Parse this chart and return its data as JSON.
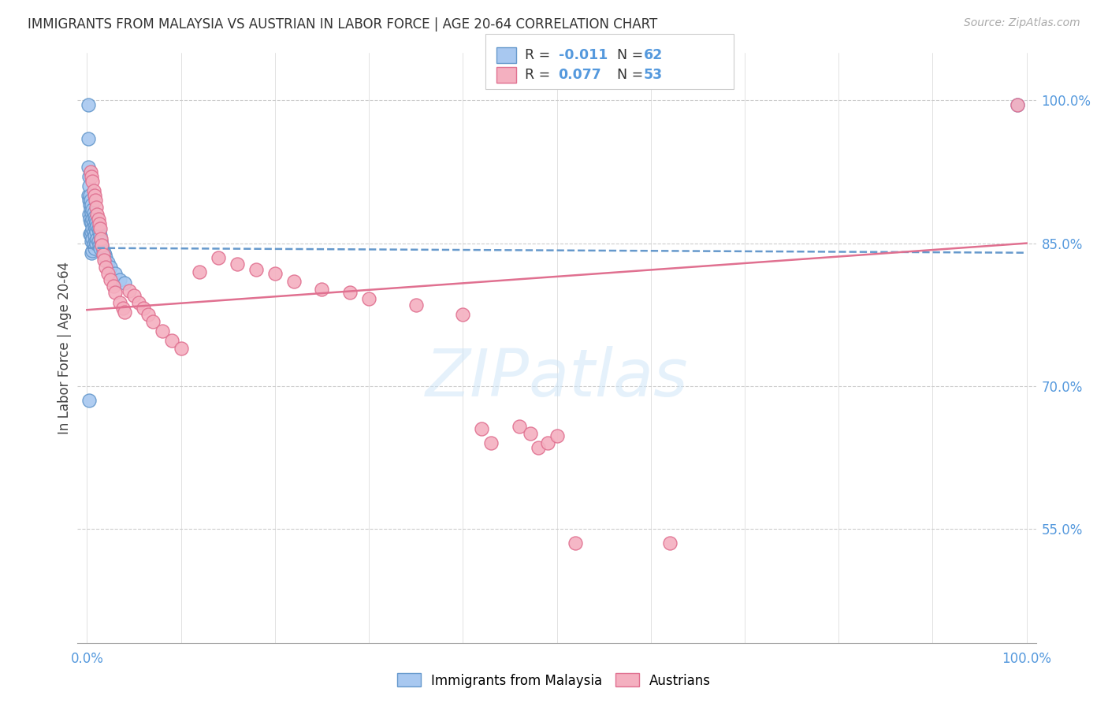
{
  "title": "IMMIGRANTS FROM MALAYSIA VS AUSTRIAN IN LABOR FORCE | AGE 20-64 CORRELATION CHART",
  "source": "Source: ZipAtlas.com",
  "ylabel": "In Labor Force | Age 20-64",
  "r_malaysia": -0.011,
  "n_malaysia": 62,
  "r_austrians": 0.077,
  "n_austrians": 53,
  "color_malaysia": "#a8c8f0",
  "color_malaysia_edge": "#6699cc",
  "color_malaysia_line": "#6699cc",
  "color_austrians": "#f4b0c0",
  "color_austrians_edge": "#e07090",
  "color_austrians_line": "#e07090",
  "color_title": "#333333",
  "color_source": "#aaaaaa",
  "color_right_axis": "#5599dd",
  "background_color": "#ffffff",
  "grid_color": "#cccccc",
  "watermark": "ZIPatlas",
  "right_yticks": [
    0.55,
    0.7,
    0.85,
    1.0
  ],
  "right_yticklabels": [
    "55.0%",
    "70.0%",
    "85.0%",
    "100.0%"
  ],
  "xlim": [
    -0.01,
    1.01
  ],
  "ylim": [
    0.43,
    1.05
  ],
  "malaysia_x": [
    0.001,
    0.001,
    0.001,
    0.001,
    0.002,
    0.002,
    0.002,
    0.002,
    0.003,
    0.003,
    0.003,
    0.003,
    0.004,
    0.004,
    0.004,
    0.004,
    0.005,
    0.005,
    0.005,
    0.005,
    0.005,
    0.005,
    0.006,
    0.006,
    0.006,
    0.006,
    0.006,
    0.007,
    0.007,
    0.007,
    0.007,
    0.008,
    0.008,
    0.008,
    0.008,
    0.009,
    0.009,
    0.009,
    0.01,
    0.01,
    0.01,
    0.011,
    0.011,
    0.012,
    0.012,
    0.013,
    0.013,
    0.014,
    0.014,
    0.015,
    0.016,
    0.017,
    0.018,
    0.019,
    0.02,
    0.022,
    0.025,
    0.03,
    0.035,
    0.04,
    0.002,
    0.99
  ],
  "malaysia_y": [
    0.995,
    0.96,
    0.93,
    0.9,
    0.92,
    0.91,
    0.895,
    0.88,
    0.9,
    0.89,
    0.875,
    0.86,
    0.895,
    0.885,
    0.872,
    0.86,
    0.89,
    0.882,
    0.872,
    0.862,
    0.852,
    0.84,
    0.885,
    0.875,
    0.865,
    0.855,
    0.842,
    0.882,
    0.872,
    0.862,
    0.85,
    0.878,
    0.868,
    0.858,
    0.845,
    0.875,
    0.865,
    0.852,
    0.872,
    0.862,
    0.85,
    0.868,
    0.855,
    0.865,
    0.852,
    0.862,
    0.848,
    0.858,
    0.845,
    0.852,
    0.848,
    0.842,
    0.84,
    0.838,
    0.835,
    0.83,
    0.825,
    0.818,
    0.812,
    0.808,
    0.685,
    0.995
  ],
  "austrians_x": [
    0.004,
    0.005,
    0.006,
    0.007,
    0.008,
    0.009,
    0.01,
    0.011,
    0.012,
    0.013,
    0.014,
    0.015,
    0.016,
    0.017,
    0.018,
    0.02,
    0.022,
    0.025,
    0.028,
    0.03,
    0.035,
    0.038,
    0.04,
    0.045,
    0.05,
    0.055,
    0.06,
    0.065,
    0.07,
    0.08,
    0.09,
    0.1,
    0.12,
    0.14,
    0.16,
    0.18,
    0.2,
    0.22,
    0.25,
    0.28,
    0.3,
    0.35,
    0.4,
    0.42,
    0.43,
    0.48,
    0.49,
    0.5,
    0.52,
    0.62,
    0.46,
    0.472,
    0.99
  ],
  "austrians_y": [
    0.925,
    0.92,
    0.915,
    0.905,
    0.9,
    0.895,
    0.888,
    0.88,
    0.875,
    0.87,
    0.865,
    0.855,
    0.848,
    0.838,
    0.832,
    0.825,
    0.818,
    0.812,
    0.805,
    0.798,
    0.788,
    0.782,
    0.778,
    0.8,
    0.795,
    0.788,
    0.782,
    0.775,
    0.768,
    0.758,
    0.748,
    0.74,
    0.82,
    0.835,
    0.828,
    0.822,
    0.818,
    0.81,
    0.802,
    0.798,
    0.792,
    0.785,
    0.775,
    0.655,
    0.64,
    0.635,
    0.64,
    0.648,
    0.535,
    0.535,
    0.658,
    0.65,
    0.995
  ]
}
